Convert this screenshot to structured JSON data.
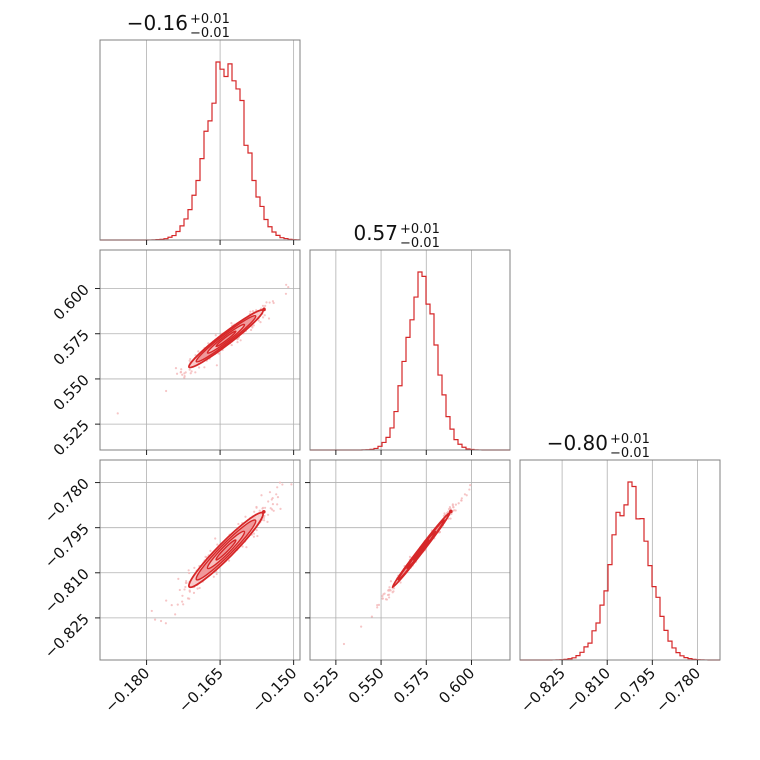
{
  "colors": {
    "main": "#d62728",
    "light": "#f4b6b8",
    "fill1": "#f7c5c6",
    "fill2": "#ef8f92"
  },
  "chart_data": {
    "type": "corner",
    "parameters": [
      {
        "title": "−0.16",
        "upper": "+0.01",
        "lower": "−0.01",
        "range": [
          -0.1895,
          -0.1487
        ],
        "ticks": [
          -0.18,
          -0.165,
          -0.15
        ],
        "tick_labels": [
          "−0.180",
          "−0.165",
          "−0.150"
        ]
      },
      {
        "title": "0.57",
        "upper": "+0.01",
        "lower": "−0.01",
        "range": [
          0.5107,
          0.6213
        ],
        "ticks": [
          0.525,
          0.55,
          0.575,
          0.6
        ],
        "tick_labels": [
          "0.525",
          "0.550",
          "0.575",
          "0.600"
        ]
      },
      {
        "title": "−0.80",
        "upper": "+0.01",
        "lower": "−0.01",
        "range": [
          -0.839,
          -0.7725
        ],
        "ticks": [
          -0.825,
          -0.81,
          -0.795,
          -0.78
        ],
        "tick_labels": [
          "−0.825",
          "−0.810",
          "−0.795",
          "−0.780"
        ]
      }
    ],
    "marginals": [
      {
        "param": 0,
        "mean": -0.1638,
        "sd": 0.0039
      },
      {
        "param": 1,
        "mean": 0.5722,
        "sd": 0.0082
      },
      {
        "param": 2,
        "mean": -0.8024,
        "sd": 0.0064
      }
    ],
    "joints": [
      {
        "x": 0,
        "y": 1,
        "center": [
          -0.1638,
          0.5722
        ],
        "correlation": 0.97
      },
      {
        "x": 0,
        "y": 2,
        "center": [
          -0.1638,
          -0.8024
        ],
        "correlation": 0.96
      },
      {
        "x": 1,
        "y": 2,
        "center": [
          0.5722,
          -0.8024
        ],
        "correlation": 0.995
      }
    ],
    "grid": true
  }
}
